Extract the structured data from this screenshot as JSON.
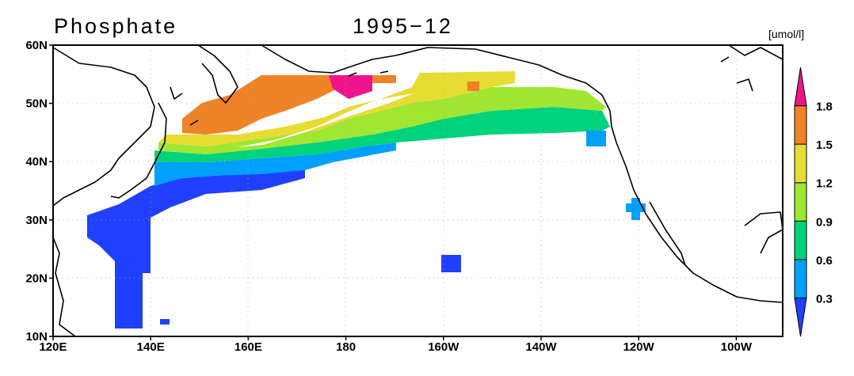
{
  "map": {
    "title": "Phosphate",
    "date": "1995−12",
    "unit": "[umol/l]",
    "lat_labels": [
      "60N",
      "50N",
      "40N",
      "30N",
      "20N",
      "10N"
    ],
    "lon_labels": [
      "120E",
      "140E",
      "160E",
      "180",
      "160W",
      "140W",
      "120W",
      "100W"
    ],
    "colorbar": {
      "levels": [
        0.3,
        0.6,
        0.9,
        1.2,
        1.5,
        1.8
      ],
      "colors": [
        "#2040ff",
        "#00a0ff",
        "#00d27d",
        "#a0e632",
        "#e6dc32",
        "#f08228",
        "#f0148c"
      ]
    }
  }
}
